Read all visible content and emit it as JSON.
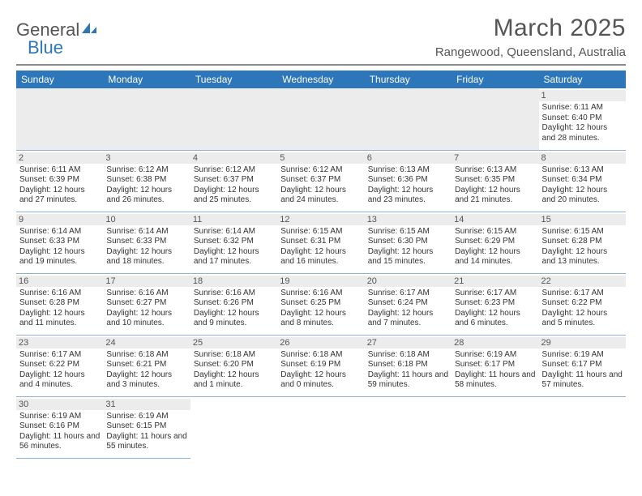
{
  "logo": {
    "general": "General",
    "blue": "Blue"
  },
  "title": "March 2025",
  "location": "Rangewood, Queensland, Australia",
  "colors": {
    "header_bg": "#2d76ba",
    "header_text": "#ffffff",
    "rule": "#8a8a8a",
    "cell_border": "#8db2d4",
    "grey_bg": "#ececec",
    "body_text": "#333333",
    "title_text": "#555555"
  },
  "dayHeaders": [
    "Sunday",
    "Monday",
    "Tuesday",
    "Wednesday",
    "Thursday",
    "Friday",
    "Saturday"
  ],
  "weeks": [
    [
      null,
      null,
      null,
      null,
      null,
      null,
      {
        "n": "1",
        "sr": "6:11 AM",
        "ss": "6:40 PM",
        "dl": "12 hours and 28 minutes."
      }
    ],
    [
      {
        "n": "2",
        "sr": "6:11 AM",
        "ss": "6:39 PM",
        "dl": "12 hours and 27 minutes."
      },
      {
        "n": "3",
        "sr": "6:12 AM",
        "ss": "6:38 PM",
        "dl": "12 hours and 26 minutes."
      },
      {
        "n": "4",
        "sr": "6:12 AM",
        "ss": "6:37 PM",
        "dl": "12 hours and 25 minutes."
      },
      {
        "n": "5",
        "sr": "6:12 AM",
        "ss": "6:37 PM",
        "dl": "12 hours and 24 minutes."
      },
      {
        "n": "6",
        "sr": "6:13 AM",
        "ss": "6:36 PM",
        "dl": "12 hours and 23 minutes."
      },
      {
        "n": "7",
        "sr": "6:13 AM",
        "ss": "6:35 PM",
        "dl": "12 hours and 21 minutes."
      },
      {
        "n": "8",
        "sr": "6:13 AM",
        "ss": "6:34 PM",
        "dl": "12 hours and 20 minutes."
      }
    ],
    [
      {
        "n": "9",
        "sr": "6:14 AM",
        "ss": "6:33 PM",
        "dl": "12 hours and 19 minutes."
      },
      {
        "n": "10",
        "sr": "6:14 AM",
        "ss": "6:33 PM",
        "dl": "12 hours and 18 minutes."
      },
      {
        "n": "11",
        "sr": "6:14 AM",
        "ss": "6:32 PM",
        "dl": "12 hours and 17 minutes."
      },
      {
        "n": "12",
        "sr": "6:15 AM",
        "ss": "6:31 PM",
        "dl": "12 hours and 16 minutes."
      },
      {
        "n": "13",
        "sr": "6:15 AM",
        "ss": "6:30 PM",
        "dl": "12 hours and 15 minutes."
      },
      {
        "n": "14",
        "sr": "6:15 AM",
        "ss": "6:29 PM",
        "dl": "12 hours and 14 minutes."
      },
      {
        "n": "15",
        "sr": "6:15 AM",
        "ss": "6:28 PM",
        "dl": "12 hours and 13 minutes."
      }
    ],
    [
      {
        "n": "16",
        "sr": "6:16 AM",
        "ss": "6:28 PM",
        "dl": "12 hours and 11 minutes."
      },
      {
        "n": "17",
        "sr": "6:16 AM",
        "ss": "6:27 PM",
        "dl": "12 hours and 10 minutes."
      },
      {
        "n": "18",
        "sr": "6:16 AM",
        "ss": "6:26 PM",
        "dl": "12 hours and 9 minutes."
      },
      {
        "n": "19",
        "sr": "6:16 AM",
        "ss": "6:25 PM",
        "dl": "12 hours and 8 minutes."
      },
      {
        "n": "20",
        "sr": "6:17 AM",
        "ss": "6:24 PM",
        "dl": "12 hours and 7 minutes."
      },
      {
        "n": "21",
        "sr": "6:17 AM",
        "ss": "6:23 PM",
        "dl": "12 hours and 6 minutes."
      },
      {
        "n": "22",
        "sr": "6:17 AM",
        "ss": "6:22 PM",
        "dl": "12 hours and 5 minutes."
      }
    ],
    [
      {
        "n": "23",
        "sr": "6:17 AM",
        "ss": "6:22 PM",
        "dl": "12 hours and 4 minutes."
      },
      {
        "n": "24",
        "sr": "6:18 AM",
        "ss": "6:21 PM",
        "dl": "12 hours and 3 minutes."
      },
      {
        "n": "25",
        "sr": "6:18 AM",
        "ss": "6:20 PM",
        "dl": "12 hours and 1 minute."
      },
      {
        "n": "26",
        "sr": "6:18 AM",
        "ss": "6:19 PM",
        "dl": "12 hours and 0 minutes."
      },
      {
        "n": "27",
        "sr": "6:18 AM",
        "ss": "6:18 PM",
        "dl": "11 hours and 59 minutes."
      },
      {
        "n": "28",
        "sr": "6:19 AM",
        "ss": "6:17 PM",
        "dl": "11 hours and 58 minutes."
      },
      {
        "n": "29",
        "sr": "6:19 AM",
        "ss": "6:17 PM",
        "dl": "11 hours and 57 minutes."
      }
    ],
    [
      {
        "n": "30",
        "sr": "6:19 AM",
        "ss": "6:16 PM",
        "dl": "11 hours and 56 minutes."
      },
      {
        "n": "31",
        "sr": "6:19 AM",
        "ss": "6:15 PM",
        "dl": "11 hours and 55 minutes."
      },
      null,
      null,
      null,
      null,
      null
    ]
  ],
  "labels": {
    "sunrise": "Sunrise:",
    "sunset": "Sunset:",
    "daylight": "Daylight:"
  }
}
